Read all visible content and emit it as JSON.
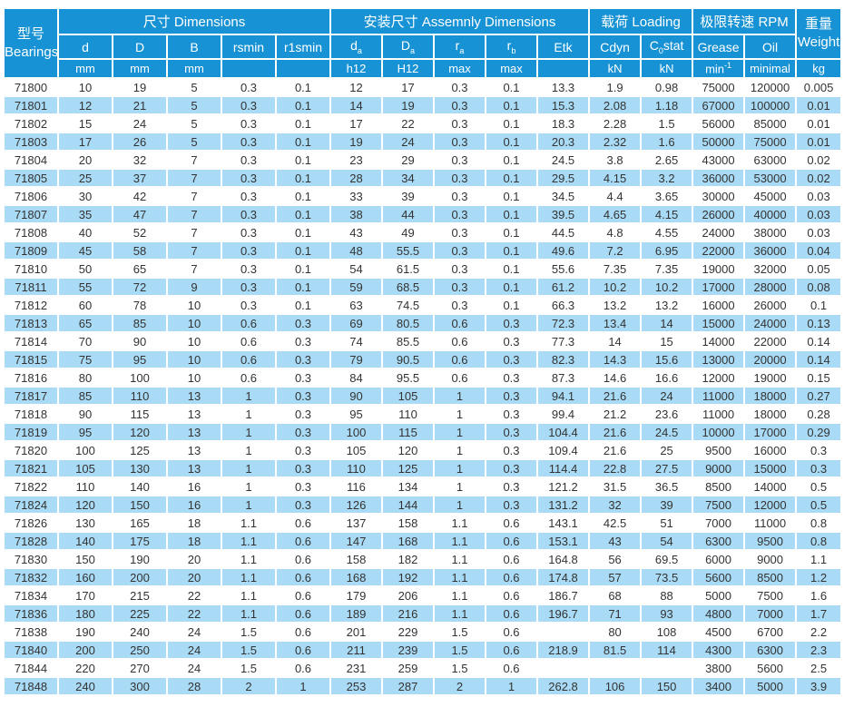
{
  "colors": {
    "header_blue": "#1792d4",
    "row_alt_blue": "#aadbf6",
    "text": "#333333"
  },
  "header": {
    "model": {
      "zh": "型号",
      "en": "Bearings"
    },
    "groups": {
      "dimensions": "尺寸 Dimensions",
      "assembly": "安装尺寸 Assemnly Dimensions",
      "loading": "载荷 Loading",
      "rpm": "极限转速 RPM"
    },
    "weight": {
      "zh": "重量",
      "en": "Weight"
    },
    "cols": {
      "d": "d",
      "D": "D",
      "B": "B",
      "rsmin": "rsmin",
      "r1smin": "r1smin",
      "da": {
        "base": "d",
        "sub": "a"
      },
      "Da": {
        "base": "D",
        "sub": "a"
      },
      "ra": {
        "base": "r",
        "sub": "a"
      },
      "rb": {
        "base": "r",
        "sub": "b"
      },
      "etk": "Etk",
      "cdyn": "Cdyn",
      "c0stat": {
        "pre": "C",
        "sub": "0",
        "post": "stat"
      },
      "grease": "Grease",
      "oil": "Oil"
    },
    "units": {
      "d": "mm",
      "D": "mm",
      "B": "mm",
      "rsmin": "",
      "r1smin": "",
      "da": "h12",
      "Da": "H12",
      "ra": "max",
      "rb": "max",
      "etk": "",
      "cdyn": "kN",
      "c0stat": "kN",
      "grease": {
        "base": "min",
        "sup": "-1"
      },
      "oil": "minimal",
      "kg": "kg"
    }
  },
  "table": {
    "col_keys": [
      "model",
      "d",
      "D",
      "B",
      "rsmin",
      "r1smin",
      "da",
      "Da",
      "ra",
      "rb",
      "etk",
      "cdyn",
      "c0stat",
      "grease",
      "oil",
      "weight"
    ],
    "rows": [
      [
        "71800",
        "10",
        "19",
        "5",
        "0.3",
        "0.1",
        "12",
        "17",
        "0.3",
        "0.1",
        "13.3",
        "1.9",
        "0.98",
        "75000",
        "120000",
        "0.005"
      ],
      [
        "71801",
        "12",
        "21",
        "5",
        "0.3",
        "0.1",
        "14",
        "19",
        "0.3",
        "0.1",
        "15.3",
        "2.08",
        "1.18",
        "67000",
        "100000",
        "0.01"
      ],
      [
        "71802",
        "15",
        "24",
        "5",
        "0.3",
        "0.1",
        "17",
        "22",
        "0.3",
        "0.1",
        "18.3",
        "2.28",
        "1.5",
        "56000",
        "85000",
        "0.01"
      ],
      [
        "71803",
        "17",
        "26",
        "5",
        "0.3",
        "0.1",
        "19",
        "24",
        "0.3",
        "0.1",
        "20.3",
        "2.32",
        "1.6",
        "50000",
        "75000",
        "0.01"
      ],
      [
        "71804",
        "20",
        "32",
        "7",
        "0.3",
        "0.1",
        "23",
        "29",
        "0.3",
        "0.1",
        "24.5",
        "3.8",
        "2.65",
        "43000",
        "63000",
        "0.02"
      ],
      [
        "71805",
        "25",
        "37",
        "7",
        "0.3",
        "0.1",
        "28",
        "34",
        "0.3",
        "0.1",
        "29.5",
        "4.15",
        "3.2",
        "36000",
        "53000",
        "0.02"
      ],
      [
        "71806",
        "30",
        "42",
        "7",
        "0.3",
        "0.1",
        "33",
        "39",
        "0.3",
        "0.1",
        "34.5",
        "4.4",
        "3.65",
        "30000",
        "45000",
        "0.03"
      ],
      [
        "71807",
        "35",
        "47",
        "7",
        "0.3",
        "0.1",
        "38",
        "44",
        "0.3",
        "0.1",
        "39.5",
        "4.65",
        "4.15",
        "26000",
        "40000",
        "0.03"
      ],
      [
        "71808",
        "40",
        "52",
        "7",
        "0.3",
        "0.1",
        "43",
        "49",
        "0.3",
        "0.1",
        "44.5",
        "4.8",
        "4.55",
        "24000",
        "38000",
        "0.03"
      ],
      [
        "71809",
        "45",
        "58",
        "7",
        "0.3",
        "0.1",
        "48",
        "55.5",
        "0.3",
        "0.1",
        "49.6",
        "7.2",
        "6.95",
        "22000",
        "36000",
        "0.04"
      ],
      [
        "71810",
        "50",
        "65",
        "7",
        "0.3",
        "0.1",
        "54",
        "61.5",
        "0.3",
        "0.1",
        "55.6",
        "7.35",
        "7.35",
        "19000",
        "32000",
        "0.05"
      ],
      [
        "71811",
        "55",
        "72",
        "9",
        "0.3",
        "0.1",
        "59",
        "68.5",
        "0.3",
        "0.1",
        "61.2",
        "10.2",
        "10.2",
        "17000",
        "28000",
        "0.08"
      ],
      [
        "71812",
        "60",
        "78",
        "10",
        "0.3",
        "0.1",
        "63",
        "74.5",
        "0.3",
        "0.1",
        "66.3",
        "13.2",
        "13.2",
        "16000",
        "26000",
        "0.1"
      ],
      [
        "71813",
        "65",
        "85",
        "10",
        "0.6",
        "0.3",
        "69",
        "80.5",
        "0.6",
        "0.3",
        "72.3",
        "13.4",
        "14",
        "15000",
        "24000",
        "0.13"
      ],
      [
        "71814",
        "70",
        "90",
        "10",
        "0.6",
        "0.3",
        "74",
        "85.5",
        "0.6",
        "0.3",
        "77.3",
        "14",
        "15",
        "14000",
        "22000",
        "0.14"
      ],
      [
        "71815",
        "75",
        "95",
        "10",
        "0.6",
        "0.3",
        "79",
        "90.5",
        "0.6",
        "0.3",
        "82.3",
        "14.3",
        "15.6",
        "13000",
        "20000",
        "0.14"
      ],
      [
        "71816",
        "80",
        "100",
        "10",
        "0.6",
        "0.3",
        "84",
        "95.5",
        "0.6",
        "0.3",
        "87.3",
        "14.6",
        "16.6",
        "12000",
        "19000",
        "0.15"
      ],
      [
        "71817",
        "85",
        "110",
        "13",
        "1",
        "0.3",
        "90",
        "105",
        "1",
        "0.3",
        "94.1",
        "21.6",
        "24",
        "11000",
        "18000",
        "0.27"
      ],
      [
        "71818",
        "90",
        "115",
        "13",
        "1",
        "0.3",
        "95",
        "110",
        "1",
        "0.3",
        "99.4",
        "21.2",
        "23.6",
        "11000",
        "18000",
        "0.28"
      ],
      [
        "71819",
        "95",
        "120",
        "13",
        "1",
        "0.3",
        "100",
        "115",
        "1",
        "0.3",
        "104.4",
        "21.6",
        "24.5",
        "10000",
        "17000",
        "0.29"
      ],
      [
        "71820",
        "100",
        "125",
        "13",
        "1",
        "0.3",
        "105",
        "120",
        "1",
        "0.3",
        "109.4",
        "21.6",
        "25",
        "9500",
        "16000",
        "0.3"
      ],
      [
        "71821",
        "105",
        "130",
        "13",
        "1",
        "0.3",
        "110",
        "125",
        "1",
        "0.3",
        "114.4",
        "22.8",
        "27.5",
        "9000",
        "15000",
        "0.3"
      ],
      [
        "71822",
        "110",
        "140",
        "16",
        "1",
        "0.3",
        "116",
        "134",
        "1",
        "0.3",
        "121.2",
        "31.5",
        "36.5",
        "8500",
        "14000",
        "0.5"
      ],
      [
        "71824",
        "120",
        "150",
        "16",
        "1",
        "0.3",
        "126",
        "144",
        "1",
        "0.3",
        "131.2",
        "32",
        "39",
        "7500",
        "12000",
        "0.5"
      ],
      [
        "71826",
        "130",
        "165",
        "18",
        "1.1",
        "0.6",
        "137",
        "158",
        "1.1",
        "0.6",
        "143.1",
        "42.5",
        "51",
        "7000",
        "11000",
        "0.8"
      ],
      [
        "71828",
        "140",
        "175",
        "18",
        "1.1",
        "0.6",
        "147",
        "168",
        "1.1",
        "0.6",
        "153.1",
        "43",
        "54",
        "6300",
        "9500",
        "0.8"
      ],
      [
        "71830",
        "150",
        "190",
        "20",
        "1.1",
        "0.6",
        "158",
        "182",
        "1.1",
        "0.6",
        "164.8",
        "56",
        "69.5",
        "6000",
        "9000",
        "1.1"
      ],
      [
        "71832",
        "160",
        "200",
        "20",
        "1.1",
        "0.6",
        "168",
        "192",
        "1.1",
        "0.6",
        "174.8",
        "57",
        "73.5",
        "5600",
        "8500",
        "1.2"
      ],
      [
        "71834",
        "170",
        "215",
        "22",
        "1.1",
        "0.6",
        "179",
        "206",
        "1.1",
        "0.6",
        "186.7",
        "68",
        "88",
        "5000",
        "7500",
        "1.6"
      ],
      [
        "71836",
        "180",
        "225",
        "22",
        "1.1",
        "0.6",
        "189",
        "216",
        "1.1",
        "0.6",
        "196.7",
        "71",
        "93",
        "4800",
        "7000",
        "1.7"
      ],
      [
        "71838",
        "190",
        "240",
        "24",
        "1.5",
        "0.6",
        "201",
        "229",
        "1.5",
        "0.6",
        "",
        "80",
        "108",
        "4500",
        "6700",
        "2.2"
      ],
      [
        "71840",
        "200",
        "250",
        "24",
        "1.5",
        "0.6",
        "211",
        "239",
        "1.5",
        "0.6",
        "218.9",
        "81.5",
        "114",
        "4300",
        "6300",
        "2.3"
      ],
      [
        "71844",
        "220",
        "270",
        "24",
        "1.5",
        "0.6",
        "231",
        "259",
        "1.5",
        "0.6",
        "",
        "",
        "",
        "3800",
        "5600",
        "2.5"
      ],
      [
        "71848",
        "240",
        "300",
        "28",
        "2",
        "1",
        "253",
        "287",
        "2",
        "1",
        "262.8",
        "106",
        "150",
        "3400",
        "5000",
        "3.9"
      ]
    ]
  }
}
